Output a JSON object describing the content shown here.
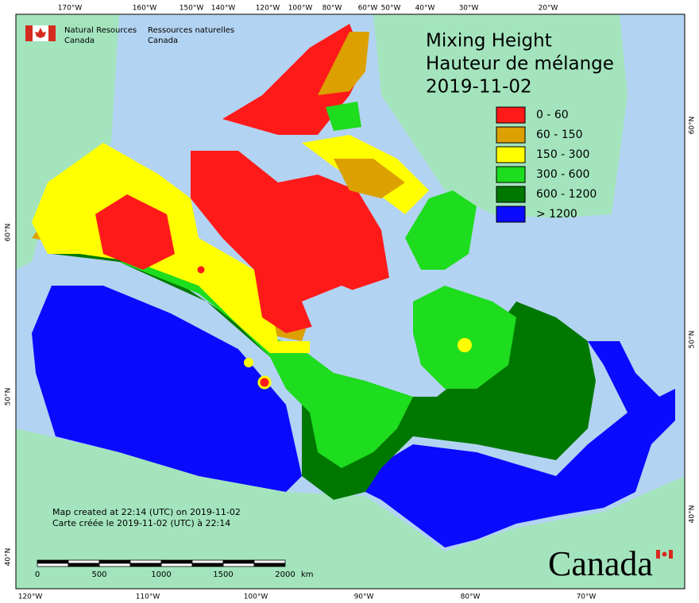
{
  "header": {
    "agency_en": [
      "Natural Resources",
      "Canada"
    ],
    "agency_fr": [
      "Ressources naturelles",
      "Canada"
    ]
  },
  "title": [
    "Mixing Height",
    "Hauteur de mélange",
    "2019-11-02"
  ],
  "legend": [
    {
      "label": "0 - 60",
      "color": "#ff1a1a"
    },
    {
      "label": "60 - 150",
      "color": "#dca000"
    },
    {
      "label": "150 - 300",
      "color": "#ffff00"
    },
    {
      "label": "300 - 600",
      "color": "#1edc1e"
    },
    {
      "label": "600 - 1200",
      "color": "#007800"
    },
    {
      "label": "> 1200",
      "color": "#0a0aff"
    }
  ],
  "footer": [
    "Map created at 22:14 (UTC) on 2019-11-02",
    "Carte créée le 2019-11-02 (UTC) à 22:14"
  ],
  "scale": {
    "ticks": [
      0,
      500,
      1000,
      1500,
      2000
    ],
    "unit": "km"
  },
  "graticule": {
    "top": [
      "170°W",
      "160°W",
      "150°W",
      "140°W",
      "120°W",
      "100°W",
      "80°W",
      "60°W",
      "50°W",
      "40°W",
      "30°W",
      "20°W"
    ],
    "bottom": [
      "120°W",
      "110°W",
      "100°W",
      "90°W",
      "80°W",
      "70°W"
    ],
    "left": [
      "60°N",
      "50°N",
      "40°N"
    ],
    "right": [
      "60°N",
      "50°N",
      "40°N"
    ]
  },
  "wordmark": "Canada"
}
